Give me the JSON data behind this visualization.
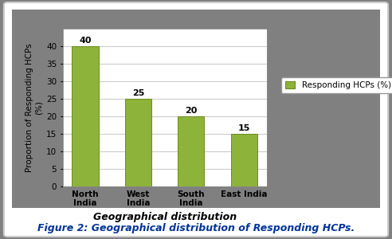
{
  "categories": [
    "North\nIndia",
    "West\nIndia",
    "South\nIndia",
    "East India"
  ],
  "values": [
    40,
    25,
    20,
    15
  ],
  "bar_color": "#8DB33A",
  "bar_edgecolor": "#6B8C1E",
  "ylabel": "Proportion of Responding HCPs\n(%)",
  "xlabel": "Geographical distribution",
  "ylim": [
    0,
    45
  ],
  "yticks": [
    0,
    5,
    10,
    15,
    20,
    25,
    30,
    35,
    40
  ],
  "legend_label": "Responding HCPs (%)",
  "figure_caption": "Figure 2: Geographical distribution of Responding HCPs.",
  "bg_outer": "#808080",
  "bg_inner_box": "#ffffff",
  "bg_chart_area": "#f0f0f0",
  "bg_plot": "#ffffff",
  "axis_fontsize": 8,
  "tick_fontsize": 7.5,
  "bar_label_fontsize": 8,
  "caption_fontsize": 9,
  "legend_fontsize": 7.5
}
